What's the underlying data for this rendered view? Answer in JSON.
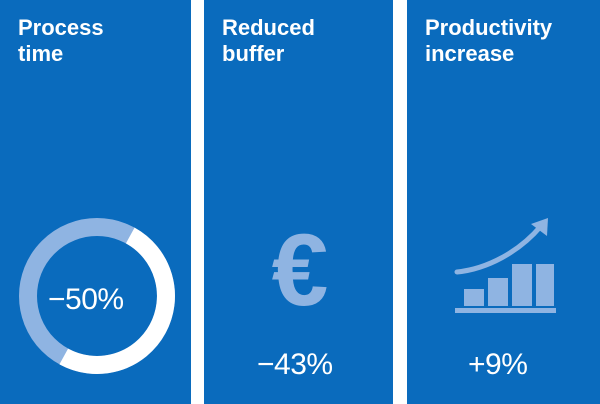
{
  "colors": {
    "panel_bg": "#0a6bbd",
    "icon_light": "#8fb4e2",
    "white": "#ffffff"
  },
  "panels": [
    {
      "title_line1": "Process",
      "title_line2": "time",
      "value": "−50%",
      "icon": "donut-progress-icon",
      "reduction_fraction": 0.5
    },
    {
      "title_line1": "Reduced",
      "title_line2": "buffer",
      "value": "−43%",
      "icon": "euro-icon",
      "glyph": "€"
    },
    {
      "title_line1": "Productivity",
      "title_line2": "increase",
      "value": "+9%",
      "icon": "growth-chart-icon"
    }
  ]
}
